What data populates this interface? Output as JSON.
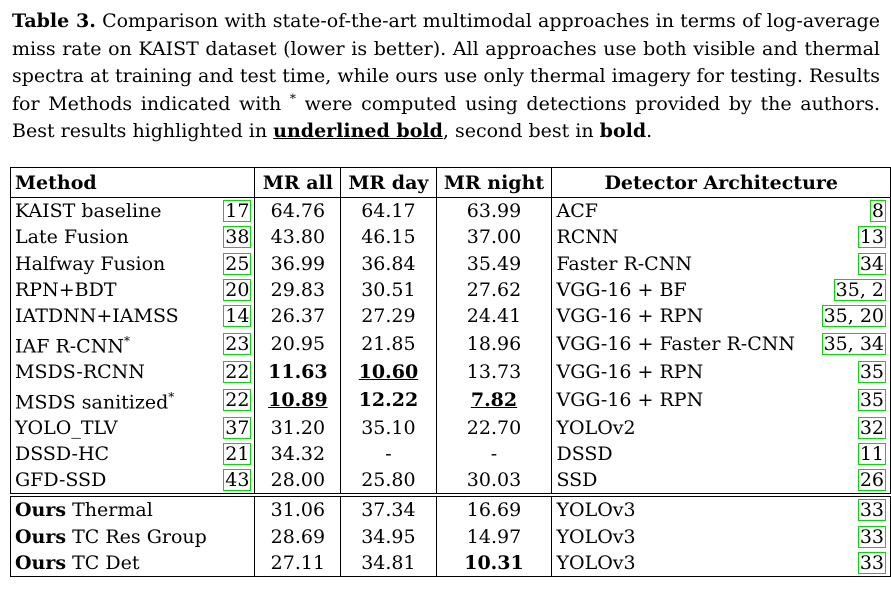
{
  "caption": {
    "label": "Table 3.",
    "text_1": "Comparison with state-of-the-art multimodal approaches in terms of log-average miss rate on KAIST dataset (lower is better). All approaches use both visible and thermal spectra at training and test time, while ours use only thermal imagery for testing. Results for Methods indicated with ",
    "star": "*",
    "text_2": " were computed using detections provided by the authors. Best results highlighted in ",
    "underlined_bold": "underlined bold",
    "text_3": ", second best in ",
    "bold": "bold",
    "text_4": "."
  },
  "headers": {
    "method": "Method",
    "mr_all": "MR all",
    "mr_day": "MR day",
    "mr_night": "MR night",
    "arch": "Detector Architecture"
  },
  "rows": [
    {
      "method": "KAIST baseline",
      "ref": "17",
      "all": "64.76",
      "day": "64.17",
      "night": "63.99",
      "arch": "ACF",
      "aref": "8"
    },
    {
      "method": "Late Fusion",
      "ref": "38",
      "all": "43.80",
      "day": "46.15",
      "night": "37.00",
      "arch": "RCNN",
      "aref": "13"
    },
    {
      "method": "Halfway Fusion",
      "ref": "25",
      "all": "36.99",
      "day": "36.84",
      "night": "35.49",
      "arch": "Faster R-CNN",
      "aref": "34"
    },
    {
      "method": "RPN+BDT",
      "ref": "20",
      "all": "29.83",
      "day": "30.51",
      "night": "27.62",
      "arch": "VGG-16 + BF",
      "aref": "35, 2"
    },
    {
      "method": "IATDNN+IAMSS",
      "ref": "14",
      "all": "26.37",
      "day": "27.29",
      "night": "24.41",
      "arch": "VGG-16 + RPN",
      "aref": "35, 20"
    },
    {
      "method": "IAF R-CNN",
      "star": "*",
      "ref": "23",
      "all": "20.95",
      "day": "21.85",
      "night": "18.96",
      "arch": "VGG-16 + Faster R-CNN",
      "aref": "35, 34"
    },
    {
      "method": "MSDS-RCNN",
      "ref": "22",
      "all": "11.63",
      "day": "10.60",
      "night": "13.73",
      "arch": "VGG-16 + RPN",
      "aref": "35"
    },
    {
      "method": "MSDS sanitized",
      "star": "*",
      "ref": "22",
      "all": "10.89",
      "day": "12.22",
      "night": "7.82",
      "arch": "VGG-16 + RPN",
      "aref": "35"
    },
    {
      "method": "YOLO_TLV",
      "ref": "37",
      "all": "31.20",
      "day": "35.10",
      "night": "22.70",
      "arch": "YOLOv2",
      "aref": "32"
    },
    {
      "method": "DSSD-HC",
      "ref": "21",
      "all": "34.32",
      "day": "-",
      "night": "-",
      "arch": "DSSD",
      "aref": "11"
    },
    {
      "method": "GFD-SSD",
      "ref": "43",
      "all": "28.00",
      "day": "25.80",
      "night": "30.03",
      "arch": "SSD",
      "aref": "26"
    }
  ],
  "ours_rows": [
    {
      "bold": "Ours",
      "method": " Thermal",
      "all": "31.06",
      "day": "37.34",
      "night": "16.69",
      "arch": "YOLOv3",
      "aref": "33"
    },
    {
      "bold": "Ours",
      "method": " TC Res Group",
      "all": "28.69",
      "day": "34.95",
      "night": "14.97",
      "arch": "YOLOv3",
      "aref": "33"
    },
    {
      "bold": "Ours",
      "method": " TC Det",
      "all": "27.11",
      "day": "34.81",
      "night": "10.31",
      "arch": "YOLOv3",
      "aref": "33"
    }
  ]
}
